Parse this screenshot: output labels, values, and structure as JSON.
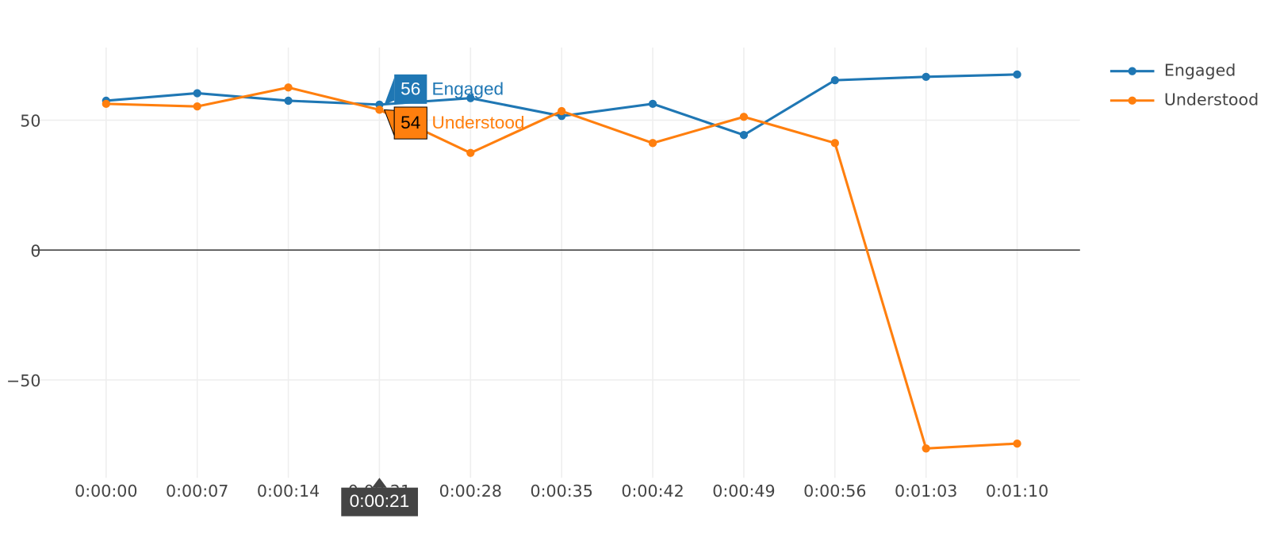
{
  "chart_data": {
    "type": "line",
    "categories": [
      "0:00:00",
      "0:00:07",
      "0:00:14",
      "0:00:21",
      "0:00:28",
      "0:00:35",
      "0:00:42",
      "0:00:49",
      "0:00:56",
      "0:01:03",
      "0:01:10"
    ],
    "series": [
      {
        "name": "Engaged",
        "color": "#1f77b4",
        "values": [
          57.5,
          60.4,
          57.5,
          56,
          58.5,
          51.6,
          56.3,
          44.3,
          65.4,
          66.7,
          67.6
        ]
      },
      {
        "name": "Understood",
        "color": "#ff7f0e",
        "values": [
          56.3,
          55.3,
          62.6,
          54,
          37.4,
          53.5,
          41.2,
          51.3,
          41.2,
          -76.4,
          -74.5
        ]
      }
    ],
    "ylim": [
      -87.7,
      78
    ],
    "yticks": [
      {
        "value": -50,
        "label": "−50"
      },
      0,
      50
    ],
    "grid": true,
    "legend": "top-right",
    "hover_index": 3
  }
}
